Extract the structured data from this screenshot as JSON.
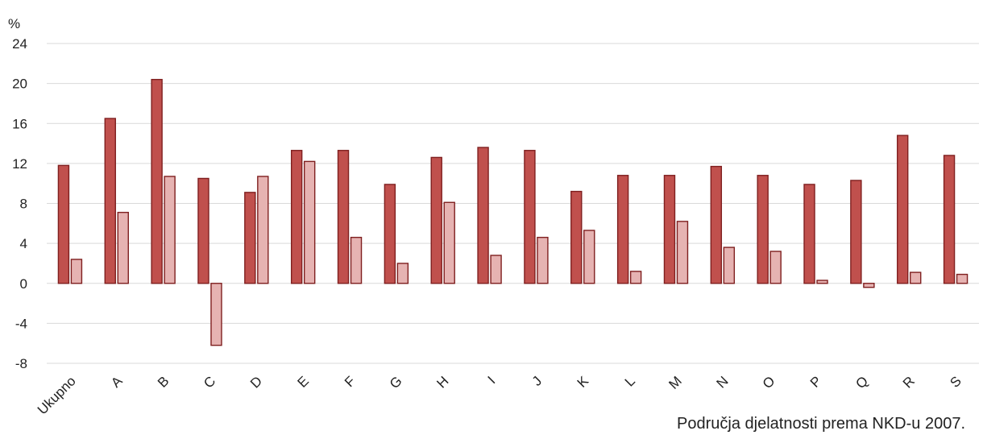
{
  "chart_data": {
    "type": "bar",
    "ylabel": "%",
    "xlabel": "Područja djelatnosti prema NKD-u 2007.",
    "categories": [
      "Ukupno",
      "A",
      "B",
      "C",
      "D",
      "E",
      "F",
      "G",
      "H",
      "I",
      "J",
      "K",
      "L",
      "M",
      "N",
      "O",
      "P",
      "Q",
      "R",
      "S"
    ],
    "series": [
      {
        "color": "#c0504d",
        "values": [
          11.8,
          16.5,
          20.4,
          10.5,
          9.1,
          13.3,
          13.3,
          9.9,
          12.6,
          13.6,
          13.3,
          9.2,
          10.8,
          10.8,
          11.7,
          10.8,
          9.9,
          10.3,
          14.8,
          12.8
        ]
      },
      {
        "color": "#e6b3b2",
        "values": [
          2.4,
          7.1,
          10.7,
          -6.2,
          10.7,
          12.2,
          4.6,
          2.0,
          8.1,
          2.8,
          4.6,
          5.3,
          1.2,
          6.2,
          3.6,
          3.2,
          0.3,
          -0.4,
          1.1,
          0.9
        ]
      }
    ],
    "ylim": [
      -8,
      24
    ],
    "yticks": [
      -8,
      -4,
      0,
      4,
      8,
      12,
      16,
      20,
      24
    ],
    "grid": true,
    "border_color": "#7f1f1f"
  }
}
